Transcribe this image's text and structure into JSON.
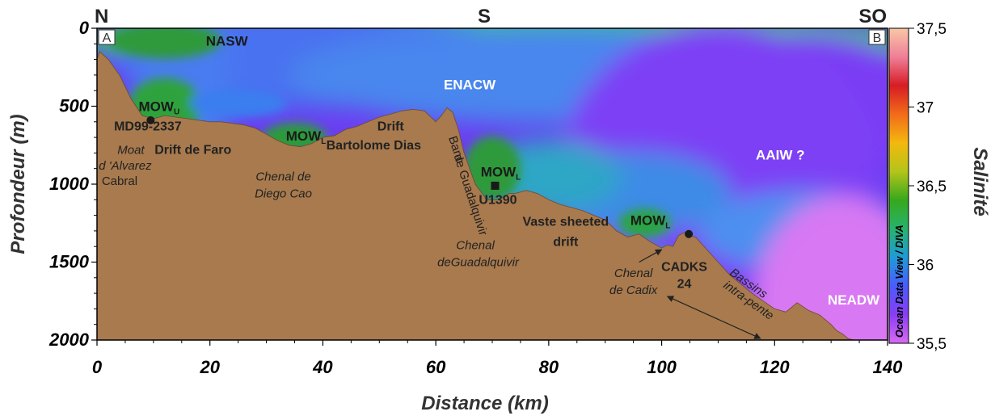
{
  "chart_data": {
    "type": "heatmap",
    "title": "",
    "xlabel": "Distance (km)",
    "ylabel": "Profondeur (m)",
    "xlim": [
      0,
      140
    ],
    "ylim": [
      2000,
      0
    ],
    "x_ticks": [
      "0",
      "20",
      "40",
      "60",
      "80",
      "100",
      "120",
      "140"
    ],
    "y_ticks": [
      "0",
      "500",
      "1000",
      "1500",
      "2000"
    ],
    "orientation_labels": [
      {
        "text": "N",
        "km": 0
      },
      {
        "text": "S",
        "km": 70
      },
      {
        "text": "SO",
        "km": 140
      }
    ],
    "section_ends": [
      "A",
      "B"
    ],
    "colorbar": {
      "label": "Salinité",
      "min": 35.5,
      "max": 37.5,
      "ticks": [
        "37,5",
        "37",
        "36,5",
        "36",
        "35,5"
      ],
      "source": "Ocean Data View / DIVA",
      "colors": [
        "#d96bf2",
        "#8a3cf4",
        "#4a5bff",
        "#1e9bd8",
        "#27b36c",
        "#37a81d",
        "#b4c41a",
        "#f3b80e",
        "#f26b1a",
        "#d71c24",
        "#ef7f98",
        "#f9c7a6"
      ]
    },
    "water_masses": [
      {
        "label": "NASW",
        "km": 23,
        "depth": 80
      },
      {
        "label": "ENACW",
        "km": 66,
        "depth": 360
      },
      {
        "label": "MOW",
        "sub": "U",
        "km": 11,
        "depth": 500
      },
      {
        "label": "MOW",
        "sub": "L",
        "km": 37,
        "depth": 690
      },
      {
        "label": "MOW",
        "sub": "L",
        "km": 71.5,
        "depth": 920
      },
      {
        "label": "MOW",
        "sub": "L",
        "km": 98,
        "depth": 1230
      },
      {
        "label": "AAIW ?",
        "km": 121,
        "depth": 810
      },
      {
        "label": "NEADW",
        "km": 134,
        "depth": 1740
      }
    ],
    "features": [
      {
        "label": "MD99-2337",
        "km": 9,
        "depth": 630,
        "style": "bold"
      },
      {
        "label": "Moat",
        "km": 6,
        "depth": 780,
        "style": "italic"
      },
      {
        "label": "d 'Alvarez",
        "km": 5,
        "depth": 880,
        "style": "italic"
      },
      {
        "label": "Cabral",
        "km": 4,
        "depth": 980,
        "style": "plain"
      },
      {
        "label": "Drift de  Faro",
        "km": 17,
        "depth": 780,
        "style": "bold"
      },
      {
        "label": "Chenal de",
        "km": 33,
        "depth": 950,
        "style": "italic"
      },
      {
        "label": "Diego Cao",
        "km": 33,
        "depth": 1060,
        "style": "italic"
      },
      {
        "label": "Drift",
        "km": 52,
        "depth": 630,
        "style": "bold"
      },
      {
        "label": "Bartolome Dias",
        "km": 49,
        "depth": 750,
        "style": "bold"
      },
      {
        "label": "Banc",
        "km": 63,
        "depth": 760,
        "style": "plain"
      },
      {
        "label": "de Guadalquivir",
        "km": 65.5,
        "depth": 1050,
        "style": "plain"
      },
      {
        "label": "U1390",
        "km": 71,
        "depth": 1100,
        "style": "bold"
      },
      {
        "label": "Vaste sheeted",
        "km": 83,
        "depth": 1240,
        "style": "bold"
      },
      {
        "label": "drift",
        "km": 83,
        "depth": 1370,
        "style": "bold"
      },
      {
        "label": "Chenal",
        "km": 67,
        "depth": 1390,
        "style": "italic"
      },
      {
        "label": "deGuadalquivir",
        "km": 67.5,
        "depth": 1500,
        "style": "italic"
      },
      {
        "label": "CADKS",
        "km": 104,
        "depth": 1530,
        "style": "bold"
      },
      {
        "label": "24",
        "km": 104,
        "depth": 1640,
        "style": "bold"
      },
      {
        "label": "Chenal",
        "km": 95,
        "depth": 1570,
        "style": "italic"
      },
      {
        "label": "de Cadix",
        "km": 95,
        "depth": 1680,
        "style": "italic"
      },
      {
        "label": "Bassins",
        "km": 115,
        "depth": 1630,
        "style": "italic"
      },
      {
        "label": "intra-pente",
        "km": 115,
        "depth": 1740,
        "style": "italic"
      }
    ],
    "cores": [
      {
        "label": "MD99-2337",
        "km": 9.5,
        "depth": 590,
        "marker": "circle"
      },
      {
        "label": "U1390",
        "km": 70.5,
        "depth": 1010,
        "marker": "square"
      },
      {
        "label": "CADKS 24",
        "km": 104.8,
        "depth": 1320,
        "marker": "circle"
      }
    ],
    "seafloor_profile": {
      "km": [
        0,
        0.5,
        2,
        4,
        6,
        8,
        10,
        12,
        14,
        16,
        18,
        20,
        22,
        24,
        26,
        28,
        30,
        32,
        34,
        36,
        38,
        40,
        42,
        44,
        46,
        48,
        50,
        52,
        54,
        56,
        58,
        60,
        61,
        62,
        63,
        64,
        65,
        66,
        67,
        68,
        69,
        70,
        71,
        72,
        73,
        74,
        75,
        76,
        78,
        80,
        82,
        84,
        86,
        88,
        90,
        92,
        94,
        96,
        98,
        100,
        101,
        102,
        103,
        104,
        105,
        106,
        108,
        110,
        112,
        114,
        116,
        118,
        120,
        122,
        124,
        126,
        128,
        129,
        130,
        131,
        132,
        133,
        134,
        136,
        138,
        140
      ],
      "depth": [
        200,
        150,
        200,
        300,
        450,
        560,
        580,
        560,
        570,
        580,
        590,
        600,
        600,
        610,
        620,
        640,
        680,
        720,
        750,
        760,
        740,
        700,
        690,
        650,
        630,
        600,
        570,
        550,
        530,
        520,
        530,
        600,
        560,
        510,
        540,
        650,
        800,
        900,
        1000,
        1050,
        1100,
        1100,
        1100,
        1080,
        1060,
        1060,
        1050,
        1040,
        1060,
        1100,
        1130,
        1150,
        1170,
        1200,
        1230,
        1300,
        1340,
        1320,
        1370,
        1410,
        1390,
        1400,
        1330,
        1310,
        1330,
        1340,
        1420,
        1500,
        1580,
        1640,
        1700,
        1750,
        1800,
        1820,
        1760,
        1810,
        1840,
        1870,
        1900,
        1940,
        1960,
        1990,
        2000,
        2000,
        2000,
        2000
      ]
    }
  }
}
